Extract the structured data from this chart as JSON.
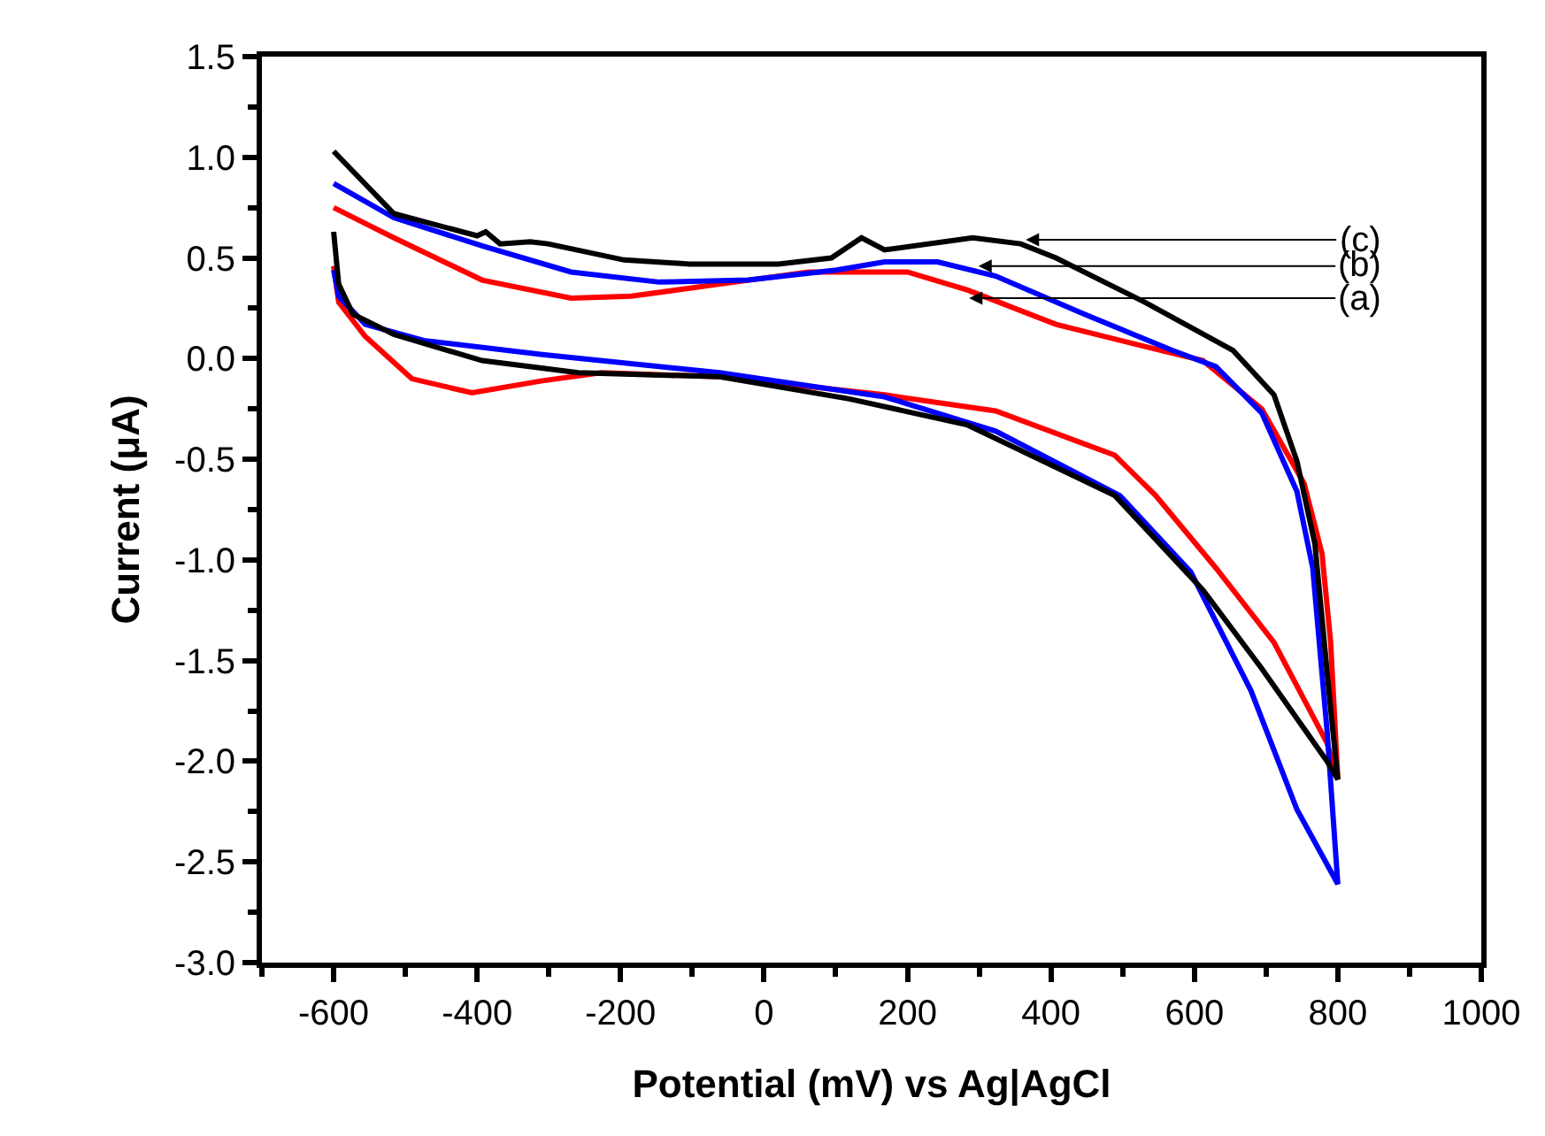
{
  "chart_data": {
    "type": "line",
    "xlabel": "Potential (mV) vs Ag|AgCl",
    "ylabel": "Current (μA)",
    "xlim": [
      -700,
      1000
    ],
    "xticks": [
      -600,
      -400,
      -200,
      0,
      200,
      400,
      600,
      800,
      1000
    ],
    "ylim": [
      -3.0,
      1.5
    ],
    "yticks": [
      {
        "value": 1.5,
        "label": "1.5"
      },
      {
        "value": 1.0,
        "label": "1.0"
      },
      {
        "value": 0.5,
        "label": "0.5"
      },
      {
        "value": 0.0,
        "label": "0.0"
      },
      {
        "value": -0.5,
        "label": "-0.5"
      },
      {
        "value": -1.0,
        "label": "-1.0"
      },
      {
        "value": -1.5,
        "label": "-1.5"
      },
      {
        "value": -2.0,
        "label": "-2.0"
      },
      {
        "value": -2.5,
        "label": "-2.5"
      },
      {
        "value": -3.0,
        "label": "-3.0"
      }
    ],
    "marker": "none",
    "line_style": "solid",
    "series": [
      {
        "color": "#ff0000",
        "x": [
          -600,
          -516,
          -393,
          -269,
          -185,
          -62,
          62,
          168,
          200,
          284,
          407,
          531,
          612,
          694,
          753,
          778,
          790,
          800,
          785,
          711,
          630,
          546,
          489,
          323,
          168,
          -62,
          -227,
          -309,
          -407,
          -491,
          -556,
          -593,
          -600
        ],
        "values": [
          0.75,
          0.6,
          0.39,
          0.3,
          0.31,
          0.37,
          0.43,
          0.43,
          0.43,
          0.34,
          0.17,
          0.06,
          -0.01,
          -0.25,
          -0.62,
          -0.97,
          -1.41,
          -2.09,
          -1.91,
          -1.41,
          -1.04,
          -0.68,
          -0.48,
          -0.26,
          -0.18,
          -0.09,
          -0.07,
          -0.11,
          -0.17,
          -0.1,
          0.11,
          0.28,
          0.46
        ]
      },
      {
        "color": "#0000ff",
        "x": [
          -600,
          -516,
          -393,
          -269,
          -146,
          -22,
          101,
          168,
          242,
          323,
          447,
          570,
          630,
          694,
          743,
          765,
          785,
          800,
          743,
          679,
          595,
          496,
          323,
          168,
          -62,
          -309,
          -474,
          -556,
          -593,
          -600
        ],
        "values": [
          0.87,
          0.7,
          0.56,
          0.43,
          0.38,
          0.39,
          0.44,
          0.48,
          0.48,
          0.41,
          0.22,
          0.04,
          -0.04,
          -0.27,
          -0.66,
          -1.04,
          -1.85,
          -2.61,
          -2.24,
          -1.65,
          -1.06,
          -0.68,
          -0.36,
          -0.19,
          -0.07,
          0.02,
          0.09,
          0.17,
          0.31,
          0.44
        ]
      },
      {
        "color": "#000000",
        "x": [
          -600,
          -516,
          -400,
          -388,
          -368,
          -326,
          -301,
          -195,
          -104,
          20,
          94,
          136,
          168,
          291,
          358,
          407,
          531,
          654,
          711,
          743,
          768,
          790,
          800,
          785,
          694,
          612,
          489,
          284,
          119,
          -62,
          -259,
          -393,
          -516,
          -573,
          -593,
          -600
        ],
        "values": [
          1.03,
          0.72,
          0.61,
          0.63,
          0.57,
          0.58,
          0.57,
          0.49,
          0.47,
          0.47,
          0.5,
          0.6,
          0.54,
          0.6,
          0.57,
          0.5,
          0.28,
          0.04,
          -0.18,
          -0.51,
          -0.92,
          -1.74,
          -2.09,
          -2.0,
          -1.54,
          -1.15,
          -0.68,
          -0.33,
          -0.2,
          -0.09,
          -0.07,
          -0.01,
          0.12,
          0.22,
          0.37,
          0.63
        ]
      }
    ],
    "annotations": [
      {
        "text": "(c)",
        "x": 365,
        "y": 0.59
      },
      {
        "text": "(b)",
        "x": 299,
        "y": 0.46
      },
      {
        "text": "(a)",
        "x": 286,
        "y": 0.3
      }
    ]
  }
}
